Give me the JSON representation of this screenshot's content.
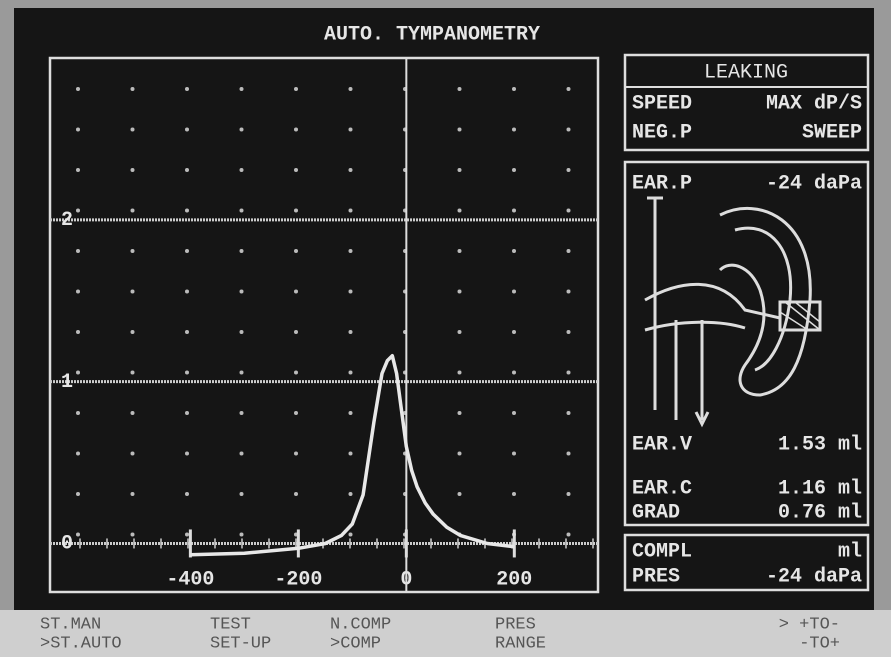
{
  "chart_data": {
    "type": "line",
    "title": "AUTO. TYMPANOMETRY",
    "x": [
      -400,
      -300,
      -200,
      -150,
      -120,
      -100,
      -80,
      -60,
      -45,
      -35,
      -26,
      -18,
      -10,
      0,
      10,
      20,
      35,
      50,
      75,
      100,
      150,
      200
    ],
    "series": [
      {
        "color": "#e8e8e8",
        "values": [
          -0.07,
          -0.06,
          -0.03,
          0.0,
          0.05,
          0.12,
          0.3,
          0.75,
          1.05,
          1.13,
          1.16,
          1.05,
          0.85,
          0.6,
          0.45,
          0.35,
          0.25,
          0.18,
          0.1,
          0.05,
          0.0,
          -0.02
        ]
      }
    ],
    "xlim": [
      -660,
      355
    ],
    "ylim": [
      -0.3,
      3.0
    ],
    "xticks": [
      -400,
      -200,
      0,
      200
    ],
    "yticks": [
      0,
      1,
      2
    ],
    "grid": true
  },
  "status": {
    "header": "LEAKING",
    "rows": [
      [
        "SPEED",
        "MAX dP/S"
      ],
      [
        "NEG.P",
        "SWEEP"
      ]
    ]
  },
  "measurements": {
    "ear_p": [
      "EAR.P",
      "-24 daPa"
    ],
    "ear_v": [
      "EAR.V",
      "1.53 ml"
    ],
    "ear_c": [
      "EAR.C",
      "1.16 ml"
    ],
    "grad": [
      "GRAD",
      "0.76 ml"
    ]
  },
  "peak": {
    "rows": [
      [
        "COMPL",
        "ml"
      ],
      [
        "PRES",
        "-24 daPa"
      ]
    ]
  },
  "menu": [
    [
      "ST.MAN",
      ">ST.AUTO"
    ],
    [
      "TEST",
      "SET-UP"
    ],
    [
      "N.COMP",
      ">COMP"
    ],
    [
      "PRES",
      "RANGE"
    ],
    [
      "> +TO-",
      "-TO+"
    ]
  ]
}
